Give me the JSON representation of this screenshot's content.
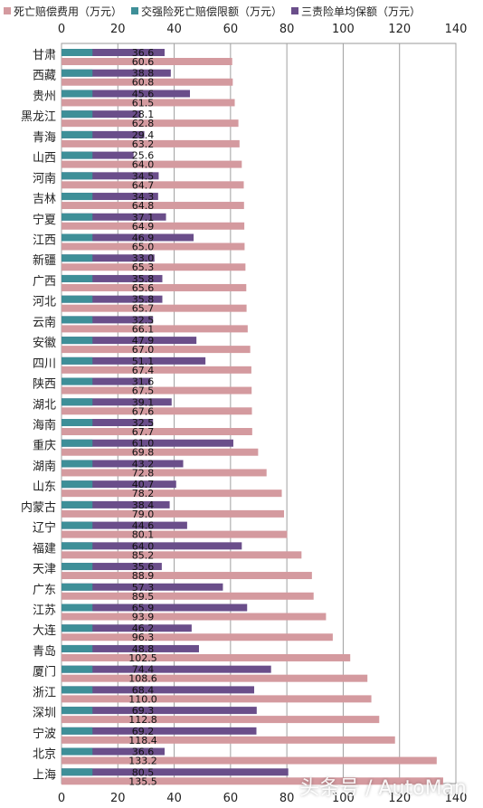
{
  "chart_data": {
    "type": "bar",
    "orientation": "horizontal",
    "categories": [
      "甘肃",
      "西藏",
      "贵州",
      "黑龙江",
      "青海",
      "山西",
      "河南",
      "吉林",
      "宁夏",
      "江西",
      "新疆",
      "广西",
      "河北",
      "云南",
      "安徽",
      "四川",
      "陕西",
      "湖北",
      "海南",
      "重庆",
      "湖南",
      "山东",
      "内蒙古",
      "辽宁",
      "福建",
      "天津",
      "广东",
      "江苏",
      "大连",
      "青岛",
      "厦门",
      "浙江",
      "深圳",
      "宁波",
      "北京",
      "上海"
    ],
    "series": [
      {
        "name": "死亡赔偿费用（万元）",
        "color": "#d49a9f",
        "values": [
          60.6,
          60.8,
          61.5,
          62.8,
          63.2,
          64.0,
          64.7,
          64.8,
          64.9,
          65.0,
          65.3,
          65.6,
          65.7,
          66.1,
          67.0,
          67.4,
          67.5,
          67.6,
          67.7,
          69.8,
          72.8,
          78.2,
          79.0,
          80.1,
          85.2,
          88.9,
          89.5,
          93.9,
          96.3,
          102.5,
          108.6,
          110.0,
          112.8,
          118.4,
          133.2,
          135.5
        ]
      },
      {
        "name": "交强险死亡赔偿限额（万元）",
        "color": "#3e8f98",
        "values": [
          11,
          11,
          11,
          11,
          11,
          11,
          11,
          11,
          11,
          11,
          11,
          11,
          11,
          11,
          11,
          11,
          11,
          11,
          11,
          11,
          11,
          11,
          11,
          11,
          11,
          11,
          11,
          11,
          11,
          11,
          11,
          11,
          11,
          11,
          11,
          11
        ]
      },
      {
        "name": "三责险单均保额（万元）",
        "color": "#6a4e8a",
        "values": [
          36.6,
          38.8,
          45.6,
          28.1,
          29.4,
          25.6,
          34.5,
          34.3,
          37.1,
          46.9,
          33.0,
          35.8,
          35.8,
          32.5,
          47.9,
          51.1,
          31.6,
          39.1,
          32.5,
          61.0,
          43.2,
          40.7,
          38.4,
          44.6,
          64.0,
          35.6,
          57.3,
          65.9,
          46.2,
          48.8,
          74.4,
          68.4,
          69.3,
          69.2,
          36.6,
          80.5
        ]
      }
    ],
    "label_text": {
      "pink": [
        "60.6",
        "60.8",
        "61.5",
        "62.8",
        "63.2",
        "64.0",
        "64.7",
        "64.8",
        "64.9",
        "65.0",
        "65.3",
        "65.6",
        "65.7",
        "66.1",
        "67.0",
        "67.4",
        "67.5",
        "67.6",
        "67.7",
        "69.8",
        "72.8",
        "78.2",
        "79.0",
        "80.1",
        "85.2",
        "88.9",
        "89.5",
        "93.9",
        "96.3",
        "102.5",
        "108.6",
        "110.0",
        "112.8",
        "118.4",
        "133.2",
        "135.5"
      ],
      "purple": [
        "36.6",
        "38.8",
        "45.6",
        "28.1",
        "29.4",
        "25.6",
        "34.5",
        "34.3",
        "37.1",
        "46.9",
        "33.0",
        "35.8",
        "35.8",
        "32.5",
        "47.9",
        "51.1",
        "31.6",
        "39.1",
        "32.5",
        "61.0",
        "43.2",
        "40.7",
        "38.4",
        "44.6",
        "64.0",
        "35.6",
        "57.3",
        "65.9",
        "46.2",
        "48.8",
        "74.4",
        "68.4",
        "69.3",
        "69.2",
        "36.6",
        "80.5"
      ]
    },
    "xlim": [
      0,
      140
    ],
    "xticks": [
      "0",
      "20",
      "40",
      "60",
      "80",
      "100",
      "120",
      "140"
    ],
    "grid": true,
    "legend_position": "top"
  },
  "watermark": "头条号 / AutoMan"
}
